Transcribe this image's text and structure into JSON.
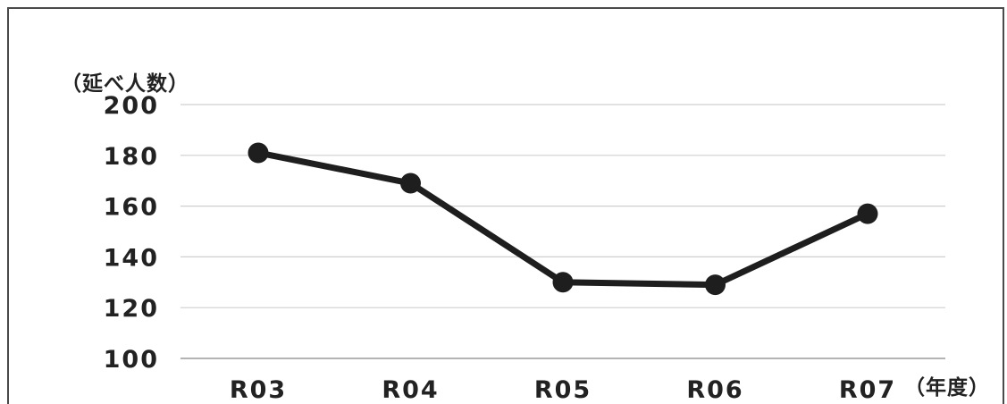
{
  "chart_data": {
    "type": "line",
    "y_unit_label": "（延べ人数）",
    "x_unit_label": "（年度）",
    "categories": [
      "R03",
      "R04",
      "R05",
      "R06",
      "R07"
    ],
    "series": [
      {
        "values": [
          181,
          169,
          130,
          129,
          157
        ]
      }
    ],
    "ylim": [
      100,
      200
    ],
    "yticks": [
      "100",
      "120",
      "140",
      "160",
      "180",
      "200"
    ],
    "grid": true,
    "colors": {
      "line": "#1e1e1e",
      "grid": "#cfcfcf",
      "text": "#222222"
    }
  }
}
